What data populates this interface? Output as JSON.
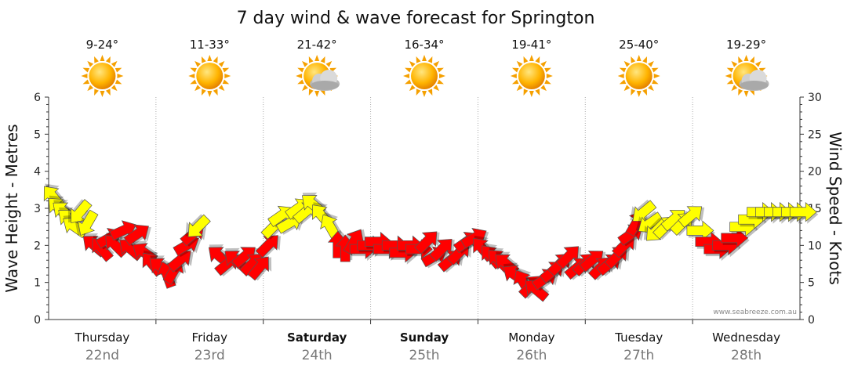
{
  "chart_data": {
    "type": "line",
    "title": "7 day wind & wave forecast for Springton",
    "ylabel_left": "Wave Height - Metres",
    "ylabel_right": "Wind Speed - Knots",
    "ylim_left": [
      0,
      6
    ],
    "ylim_right": [
      0,
      30
    ],
    "yticks_left": [
      "0",
      "1",
      "2",
      "3",
      "4",
      "5",
      "6"
    ],
    "yticks_right": [
      "0",
      "5",
      "10",
      "15",
      "20",
      "25",
      "30"
    ],
    "watermark": "www.seabreeze.com.au",
    "colors": {
      "sea_breeze": "#ffff00",
      "offshore": "#ff0000",
      "outline": "#555555"
    },
    "days": [
      {
        "name": "Thursday",
        "date": "22nd",
        "temp": "9-24°",
        "icon": "sun-icon",
        "bold": false
      },
      {
        "name": "Friday",
        "date": "23rd",
        "temp": "11-33°",
        "icon": "sun-icon",
        "bold": false
      },
      {
        "name": "Saturday",
        "date": "24th",
        "temp": "21-42°",
        "icon": "sun-cloud-icon",
        "bold": true
      },
      {
        "name": "Sunday",
        "date": "25th",
        "temp": "16-34°",
        "icon": "sun-icon",
        "bold": true
      },
      {
        "name": "Monday",
        "date": "26th",
        "temp": "19-41°",
        "icon": "sun-icon",
        "bold": false
      },
      {
        "name": "Tuesday",
        "date": "27th",
        "temp": "25-40°",
        "icon": "sun-icon",
        "bold": false
      },
      {
        "name": "Wednesday",
        "date": "28th",
        "temp": "19-29°",
        "icon": "sun-cloud-icon",
        "bold": false
      }
    ],
    "wind_series": [
      {
        "t": 0.0,
        "kn": 16.5,
        "dir": 130,
        "c": "yellow"
      },
      {
        "t": 0.05,
        "kn": 15.0,
        "dir": 135,
        "c": "yellow"
      },
      {
        "t": 0.1,
        "kn": 14.5,
        "dir": 140,
        "c": "yellow"
      },
      {
        "t": 0.15,
        "kn": 13.5,
        "dir": 140,
        "c": "yellow"
      },
      {
        "t": 0.2,
        "kn": 12.5,
        "dir": 145,
        "c": "yellow"
      },
      {
        "t": 0.25,
        "kn": 14.5,
        "dir": 230,
        "c": "yellow"
      },
      {
        "t": 0.32,
        "kn": 13.0,
        "dir": 240,
        "c": "yellow"
      },
      {
        "t": 0.38,
        "kn": 10.0,
        "dir": 140,
        "c": "red"
      },
      {
        "t": 0.45,
        "kn": 9.5,
        "dir": 130,
        "c": "red"
      },
      {
        "t": 0.52,
        "kn": 11.0,
        "dir": 30,
        "c": "red"
      },
      {
        "t": 0.58,
        "kn": 10.0,
        "dir": 135,
        "c": "red"
      },
      {
        "t": 0.65,
        "kn": 12.0,
        "dir": 25,
        "c": "red"
      },
      {
        "t": 0.72,
        "kn": 9.5,
        "dir": 140,
        "c": "red"
      },
      {
        "t": 0.78,
        "kn": 11.5,
        "dir": 35,
        "c": "red"
      },
      {
        "t": 0.85,
        "kn": 9.0,
        "dir": 145,
        "c": "red"
      },
      {
        "t": 0.92,
        "kn": 7.5,
        "dir": 130,
        "c": "red"
      },
      {
        "t": 1.0,
        "kn": 7.0,
        "dir": 140,
        "c": "red"
      },
      {
        "t": 1.06,
        "kn": 6.0,
        "dir": 110,
        "c": "red"
      },
      {
        "t": 1.12,
        "kn": 6.5,
        "dir": 60,
        "c": "red"
      },
      {
        "t": 1.18,
        "kn": 8.0,
        "dir": 40,
        "c": "red"
      },
      {
        "t": 1.24,
        "kn": 10.0,
        "dir": 30,
        "c": "red"
      },
      {
        "t": 1.3,
        "kn": 11.5,
        "dir": 40,
        "c": "red"
      },
      {
        "t": 1.35,
        "kn": 12.5,
        "dir": 225,
        "c": "yellow"
      },
      {
        "t": 1.55,
        "kn": 8.5,
        "dir": 140,
        "c": "red"
      },
      {
        "t": 1.62,
        "kn": 7.5,
        "dir": 40,
        "c": "red"
      },
      {
        "t": 1.7,
        "kn": 8.0,
        "dir": 140,
        "c": "red"
      },
      {
        "t": 1.78,
        "kn": 8.5,
        "dir": 40,
        "c": "red"
      },
      {
        "t": 1.85,
        "kn": 7.5,
        "dir": 45,
        "c": "red"
      },
      {
        "t": 1.92,
        "kn": 7.0,
        "dir": 50,
        "c": "red"
      },
      {
        "t": 2.0,
        "kn": 10.0,
        "dir": 45,
        "c": "red"
      },
      {
        "t": 2.05,
        "kn": 12.5,
        "dir": 45,
        "c": "yellow"
      },
      {
        "t": 2.12,
        "kn": 14.0,
        "dir": 35,
        "c": "yellow"
      },
      {
        "t": 2.2,
        "kn": 13.0,
        "dir": 30,
        "c": "yellow"
      },
      {
        "t": 2.28,
        "kn": 15.0,
        "dir": 35,
        "c": "yellow"
      },
      {
        "t": 2.35,
        "kn": 14.5,
        "dir": 40,
        "c": "yellow"
      },
      {
        "t": 2.42,
        "kn": 15.5,
        "dir": 140,
        "c": "yellow"
      },
      {
        "t": 2.5,
        "kn": 14.0,
        "dir": 130,
        "c": "yellow"
      },
      {
        "t": 2.58,
        "kn": 12.5,
        "dir": 120,
        "c": "yellow"
      },
      {
        "t": 2.65,
        "kn": 10.0,
        "dir": 90,
        "c": "red"
      },
      {
        "t": 2.72,
        "kn": 9.5,
        "dir": 90,
        "c": "red"
      },
      {
        "t": 2.8,
        "kn": 10.5,
        "dir": 60,
        "c": "red"
      },
      {
        "t": 2.88,
        "kn": 9.5,
        "dir": 0,
        "c": "red"
      },
      {
        "t": 2.95,
        "kn": 10.0,
        "dir": 0,
        "c": "red"
      },
      {
        "t": 3.02,
        "kn": 10.5,
        "dir": 0,
        "c": "red"
      },
      {
        "t": 3.1,
        "kn": 9.5,
        "dir": 0,
        "c": "red"
      },
      {
        "t": 3.18,
        "kn": 10.0,
        "dir": 0,
        "c": "red"
      },
      {
        "t": 3.25,
        "kn": 9.0,
        "dir": 0,
        "c": "red"
      },
      {
        "t": 3.32,
        "kn": 10.0,
        "dir": 0,
        "c": "red"
      },
      {
        "t": 3.4,
        "kn": 9.5,
        "dir": 0,
        "c": "red"
      },
      {
        "t": 3.48,
        "kn": 10.5,
        "dir": 45,
        "c": "red"
      },
      {
        "t": 3.55,
        "kn": 8.5,
        "dir": 30,
        "c": "red"
      },
      {
        "t": 3.62,
        "kn": 9.5,
        "dir": 45,
        "c": "red"
      },
      {
        "t": 3.7,
        "kn": 8.0,
        "dir": 40,
        "c": "red"
      },
      {
        "t": 3.78,
        "kn": 9.0,
        "dir": 45,
        "c": "red"
      },
      {
        "t": 3.85,
        "kn": 10.5,
        "dir": 35,
        "c": "red"
      },
      {
        "t": 3.92,
        "kn": 11.0,
        "dir": 30,
        "c": "red"
      },
      {
        "t": 4.0,
        "kn": 9.5,
        "dir": 130,
        "c": "red"
      },
      {
        "t": 4.08,
        "kn": 8.5,
        "dir": 130,
        "c": "red"
      },
      {
        "t": 4.15,
        "kn": 8.0,
        "dir": 135,
        "c": "red"
      },
      {
        "t": 4.22,
        "kn": 7.5,
        "dir": 140,
        "c": "red"
      },
      {
        "t": 4.3,
        "kn": 6.0,
        "dir": 145,
        "c": "red"
      },
      {
        "t": 4.38,
        "kn": 5.0,
        "dir": 120,
        "c": "red"
      },
      {
        "t": 4.45,
        "kn": 4.5,
        "dir": 45,
        "c": "red"
      },
      {
        "t": 4.5,
        "kn": 4.0,
        "dir": 140,
        "c": "red"
      },
      {
        "t": 4.58,
        "kn": 5.5,
        "dir": 35,
        "c": "red"
      },
      {
        "t": 4.65,
        "kn": 6.5,
        "dir": 40,
        "c": "red"
      },
      {
        "t": 4.72,
        "kn": 7.5,
        "dir": 45,
        "c": "red"
      },
      {
        "t": 4.8,
        "kn": 8.5,
        "dir": 45,
        "c": "red"
      },
      {
        "t": 4.88,
        "kn": 7.0,
        "dir": 40,
        "c": "red"
      },
      {
        "t": 4.95,
        "kn": 7.5,
        "dir": 45,
        "c": "red"
      },
      {
        "t": 5.02,
        "kn": 8.0,
        "dir": 40,
        "c": "red"
      },
      {
        "t": 5.1,
        "kn": 7.0,
        "dir": 45,
        "c": "red"
      },
      {
        "t": 5.18,
        "kn": 7.5,
        "dir": 40,
        "c": "red"
      },
      {
        "t": 5.25,
        "kn": 8.5,
        "dir": 45,
        "c": "red"
      },
      {
        "t": 5.32,
        "kn": 10.0,
        "dir": 45,
        "c": "red"
      },
      {
        "t": 5.38,
        "kn": 11.5,
        "dir": 35,
        "c": "red"
      },
      {
        "t": 5.43,
        "kn": 13.0,
        "dir": 60,
        "c": "red"
      },
      {
        "t": 5.5,
        "kn": 14.5,
        "dir": 220,
        "c": "yellow"
      },
      {
        "t": 5.56,
        "kn": 13.0,
        "dir": 215,
        "c": "yellow"
      },
      {
        "t": 5.62,
        "kn": 12.0,
        "dir": 225,
        "c": "yellow"
      },
      {
        "t": 5.7,
        "kn": 12.5,
        "dir": 45,
        "c": "yellow"
      },
      {
        "t": 5.78,
        "kn": 13.5,
        "dir": 40,
        "c": "yellow"
      },
      {
        "t": 5.86,
        "kn": 13.0,
        "dir": 45,
        "c": "yellow"
      },
      {
        "t": 5.94,
        "kn": 14.0,
        "dir": 40,
        "c": "yellow"
      },
      {
        "t": 6.02,
        "kn": 12.0,
        "dir": 0,
        "c": "yellow"
      },
      {
        "t": 6.1,
        "kn": 10.5,
        "dir": 0,
        "c": "red"
      },
      {
        "t": 6.18,
        "kn": 9.5,
        "dir": 0,
        "c": "red"
      },
      {
        "t": 6.26,
        "kn": 10.0,
        "dir": 0,
        "c": "red"
      },
      {
        "t": 6.34,
        "kn": 11.0,
        "dir": 0,
        "c": "red"
      },
      {
        "t": 6.42,
        "kn": 12.5,
        "dir": 0,
        "c": "yellow"
      },
      {
        "t": 6.5,
        "kn": 13.5,
        "dir": 0,
        "c": "yellow"
      },
      {
        "t": 6.58,
        "kn": 14.5,
        "dir": 0,
        "c": "yellow"
      },
      {
        "t": 6.66,
        "kn": 14.5,
        "dir": 0,
        "c": "yellow"
      },
      {
        "t": 6.74,
        "kn": 14.5,
        "dir": 0,
        "c": "yellow"
      },
      {
        "t": 6.82,
        "kn": 14.5,
        "dir": 0,
        "c": "yellow"
      },
      {
        "t": 6.9,
        "kn": 14.5,
        "dir": 0,
        "c": "yellow"
      },
      {
        "t": 6.98,
        "kn": 14.5,
        "dir": 0,
        "c": "yellow"
      }
    ]
  }
}
